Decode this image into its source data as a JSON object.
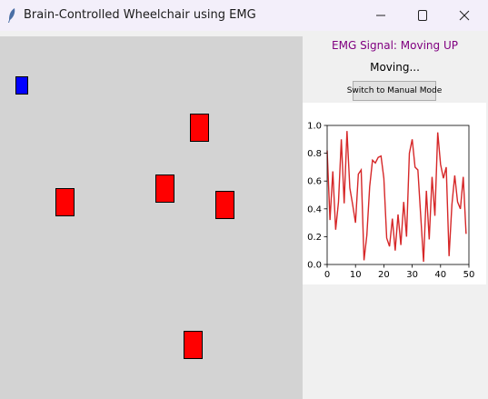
{
  "window": {
    "title": "Brain-Controlled Wheelchair using EMG",
    "icon": "feather-icon",
    "controls": {
      "minimize": "minimize-icon",
      "maximize": "maximize-icon",
      "close": "close-icon"
    }
  },
  "canvas": {
    "background": "#d3d3d3",
    "wheelchair_color": "#0000ff",
    "obstacle_color": "#ff0000",
    "obstacle_count": 5
  },
  "panel": {
    "emg_signal_text": "EMG Signal: Moving UP",
    "emg_signal_color": "#800080",
    "status_text": "Moving...",
    "mode_button_label": "Switch to Manual Mode"
  },
  "chart_data": {
    "type": "line",
    "title": "",
    "xlabel": "",
    "ylabel": "",
    "xlim": [
      0,
      50
    ],
    "ylim": [
      0,
      1.0
    ],
    "xticks": [
      "0",
      "10",
      "20",
      "30",
      "40",
      "50"
    ],
    "yticks": [
      "0.0",
      "0.2",
      "0.4",
      "0.6",
      "0.8",
      "1.0"
    ],
    "grid": false,
    "line_color": "#d62728",
    "x": [
      0,
      1,
      2,
      3,
      4,
      5,
      6,
      7,
      8,
      9,
      10,
      11,
      12,
      13,
      14,
      15,
      16,
      17,
      18,
      19,
      20,
      21,
      22,
      23,
      24,
      25,
      26,
      27,
      28,
      29,
      30,
      31,
      32,
      33,
      34,
      35,
      36,
      37,
      38,
      39,
      40,
      41,
      42,
      43,
      44,
      45,
      46,
      47,
      48,
      49
    ],
    "series": [
      {
        "values": [
          0.82,
          0.32,
          0.67,
          0.25,
          0.45,
          0.9,
          0.44,
          0.96,
          0.55,
          0.43,
          0.3,
          0.65,
          0.68,
          0.03,
          0.21,
          0.56,
          0.75,
          0.73,
          0.77,
          0.78,
          0.62,
          0.19,
          0.13,
          0.33,
          0.1,
          0.36,
          0.14,
          0.45,
          0.2,
          0.8,
          0.9,
          0.7,
          0.68,
          0.35,
          0.02,
          0.53,
          0.18,
          0.63,
          0.35,
          0.95,
          0.72,
          0.62,
          0.7,
          0.06,
          0.43,
          0.64,
          0.45,
          0.4,
          0.63,
          0.22
        ]
      }
    ]
  }
}
